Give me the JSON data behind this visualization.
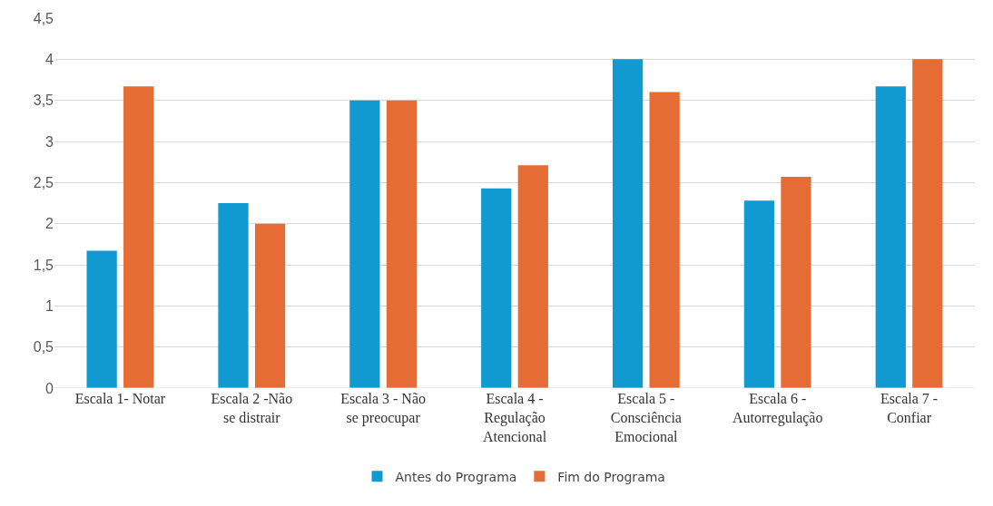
{
  "chart_data": {
    "type": "bar",
    "categories": [
      "Escala 1- Notar",
      "Escala 2 -Não se distrair",
      "Escala 3 - Não se preocupar",
      "Escala 4 - Regulação Atencional",
      "Escala 5 - Consciência Emocional",
      "Escala 6 - Autorregulação",
      "Escala 7 - Confiar"
    ],
    "series": [
      {
        "name": "Antes do Programa",
        "color": "#1199d1",
        "values": [
          1.67,
          2.25,
          3.5,
          2.43,
          4,
          2.28,
          3.67
        ]
      },
      {
        "name": "Fim do Programa",
        "color": "#e56c34",
        "values": [
          3.67,
          2,
          3.5,
          2.71,
          3.6,
          2.57,
          4
        ]
      }
    ],
    "ylim": [
      0,
      4.5
    ],
    "yticks": [
      {
        "value": 0,
        "label": "0"
      },
      {
        "value": 0.5,
        "label": "0,5"
      },
      {
        "value": 1,
        "label": "1"
      },
      {
        "value": 1.5,
        "label": "1,5"
      },
      {
        "value": 2,
        "label": "2"
      },
      {
        "value": 2.5,
        "label": "2,5"
      },
      {
        "value": 3,
        "label": "3"
      },
      {
        "value": 3.5,
        "label": "3,5"
      },
      {
        "value": 4,
        "label": "4"
      },
      {
        "value": 4.5,
        "label": "4,5"
      }
    ],
    "grid": "y",
    "legend": "bottom"
  }
}
